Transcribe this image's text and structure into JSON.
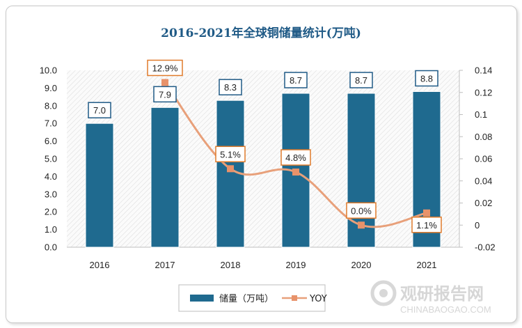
{
  "chart_data": {
    "type": "bar",
    "title": "2016-2021年全球铜储量统计(万吨)",
    "categories": [
      "2016",
      "2017",
      "2018",
      "2019",
      "2020",
      "2021"
    ],
    "series": [
      {
        "name": "储量（万吨）",
        "type": "bar",
        "axis": "left",
        "values": [
          7.0,
          7.9,
          8.3,
          8.7,
          8.7,
          8.8
        ],
        "labels": [
          "7.0",
          "7.9",
          "8.3",
          "8.7",
          "8.7",
          "8.8"
        ],
        "color": "#1f6a8f"
      },
      {
        "name": "YOY",
        "type": "line",
        "axis": "right",
        "values": [
          null,
          0.129,
          0.051,
          0.048,
          0.0,
          0.011
        ],
        "labels": [
          "",
          "12.9%",
          "5.1%",
          "4.8%",
          "0.0%",
          "1.1%"
        ],
        "color": "#e8a07a"
      }
    ],
    "y_left": {
      "min": 0,
      "max": 10,
      "ticks": [
        "0.0",
        "1.0",
        "2.0",
        "3.0",
        "4.0",
        "5.0",
        "6.0",
        "7.0",
        "8.0",
        "9.0",
        "10.0"
      ]
    },
    "y_right": {
      "min": -0.02,
      "max": 0.14,
      "ticks": [
        "-0.02",
        "0",
        "0.02",
        "0.04",
        "0.06",
        "0.08",
        "0.1",
        "0.12",
        "0.14"
      ]
    },
    "legend_position": "bottom"
  },
  "watermark": {
    "brand_cn": "观研报告网",
    "brand_en": "CHINABAOGAO.COM"
  },
  "colors": {
    "title": "#1f5a86",
    "bar": "#1f6a8f",
    "line": "#e8a07a",
    "marker": "#e8926a",
    "yoy_label_border": "#e07b2b",
    "bar_label_border": "#1f5a86"
  }
}
